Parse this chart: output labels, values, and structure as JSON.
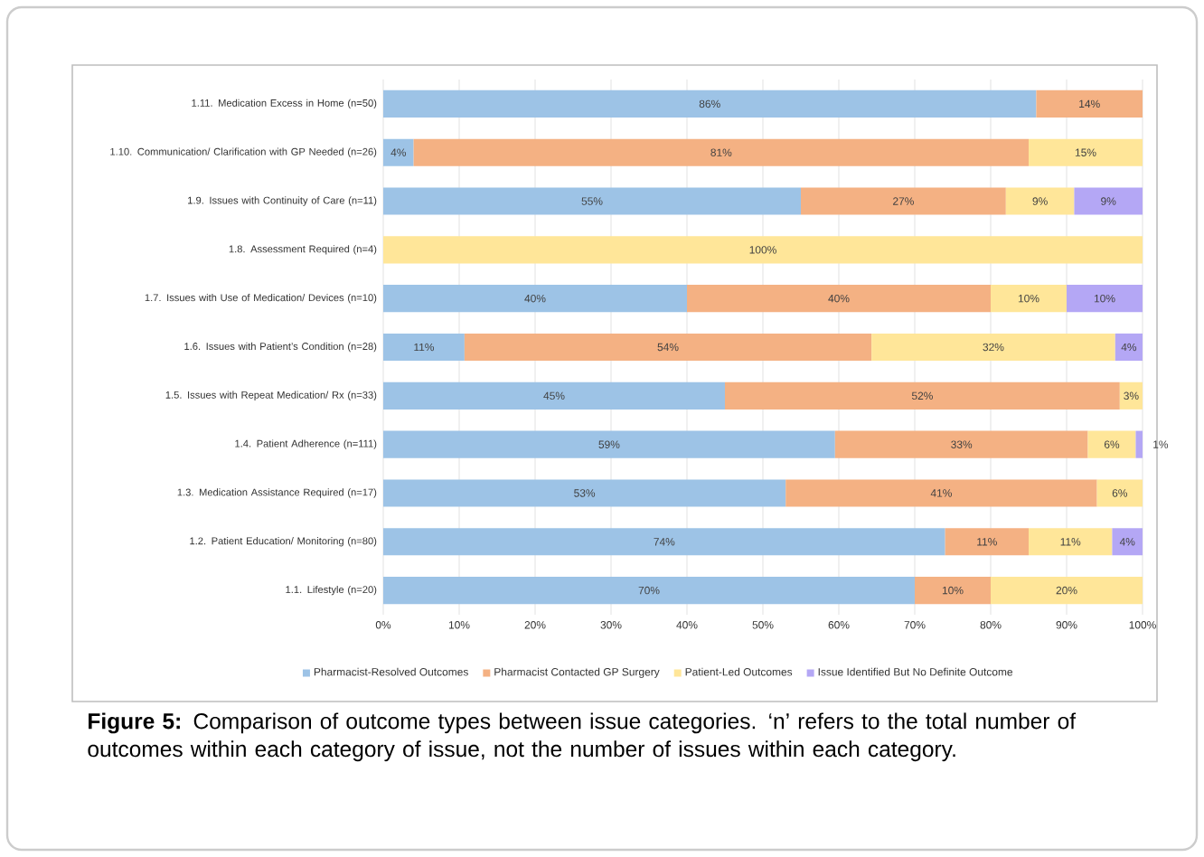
{
  "chart_data": {
    "type": "bar",
    "orientation": "horizontal",
    "stacked": true,
    "categories": [
      "1.11. Medication Excess in Home (n=50)",
      "1.10. Communication/ Clarification with GP Needed (n=26)",
      "1.9. Issues with Continuity of Care (n=11)",
      "1.8. Assessment Required (n=4)",
      "1.7. Issues with Use of Medication/ Devices (n=10)",
      "1.6. Issues with Patient’s Condition (n=28)",
      "1.5. Issues with Repeat Medication/ Rx (n=33)",
      "1.4. Patient Adherence (n=111)",
      "1.3. Medication Assistance Required (n=17)",
      "1.2. Patient Education/ Monitoring (n=80)",
      "1.1. Lifestyle (n=20)"
    ],
    "series": [
      {
        "name": "Pharmacist-Resolved Outcomes",
        "color": "#9dc3e6",
        "values": [
          86,
          4,
          55,
          null,
          40,
          10.7,
          45,
          59.5,
          53,
          74,
          70
        ],
        "value_labels": [
          "86%",
          "4%",
          "55%",
          null,
          "40%",
          "11%",
          "45%",
          "59%",
          "53%",
          "74%",
          "70%"
        ]
      },
      {
        "name": "Pharmacist Contacted GP Surgery",
        "color": "#f4b183",
        "values": [
          14,
          81,
          27,
          null,
          40,
          53.6,
          52,
          33.3,
          41,
          11,
          10
        ],
        "value_labels": [
          "14%",
          "81%",
          "27%",
          null,
          "40%",
          "54%",
          "52%",
          "33%",
          "41%",
          "11%",
          "10%"
        ]
      },
      {
        "name": "Patient-Led Outcomes",
        "color": "#ffe699",
        "values": [
          null,
          15,
          9,
          100,
          10,
          32.1,
          3,
          6.3,
          6,
          11,
          20
        ],
        "value_labels": [
          null,
          "15%",
          "9%",
          "100%",
          "10%",
          "32%",
          "3%",
          "6%",
          "6%",
          "11%",
          "20%"
        ]
      },
      {
        "name": "Issue Identified But No Definite Outcome",
        "color": "#b4a7f5",
        "values": [
          null,
          null,
          9,
          null,
          10,
          3.6,
          null,
          0.9,
          null,
          4,
          null
        ],
        "value_labels": [
          null,
          null,
          "9%",
          null,
          "10%",
          "4%",
          null,
          "1%",
          null,
          "4%",
          null
        ]
      }
    ],
    "xlim": [
      0,
      100
    ],
    "xticks": [
      {
        "value": 0,
        "label": "0%"
      },
      {
        "value": 10,
        "label": "10%"
      },
      {
        "value": 20,
        "label": "20%"
      },
      {
        "value": 30,
        "label": "30%"
      },
      {
        "value": 40,
        "label": "40%"
      },
      {
        "value": 50,
        "label": "50%"
      },
      {
        "value": 60,
        "label": "60%"
      },
      {
        "value": 70,
        "label": "70%"
      },
      {
        "value": 80,
        "label": "80%"
      },
      {
        "value": 90,
        "label": "90%"
      },
      {
        "value": 100,
        "label": "100%"
      }
    ],
    "grid": "x",
    "legend": "bottom",
    "annotations": [
      "**Figure 5:** Comparison of outcome types between issue categories. ‘n’ refers to the total number of outcomes within each category of issue, not the number of issues within each category."
    ]
  }
}
